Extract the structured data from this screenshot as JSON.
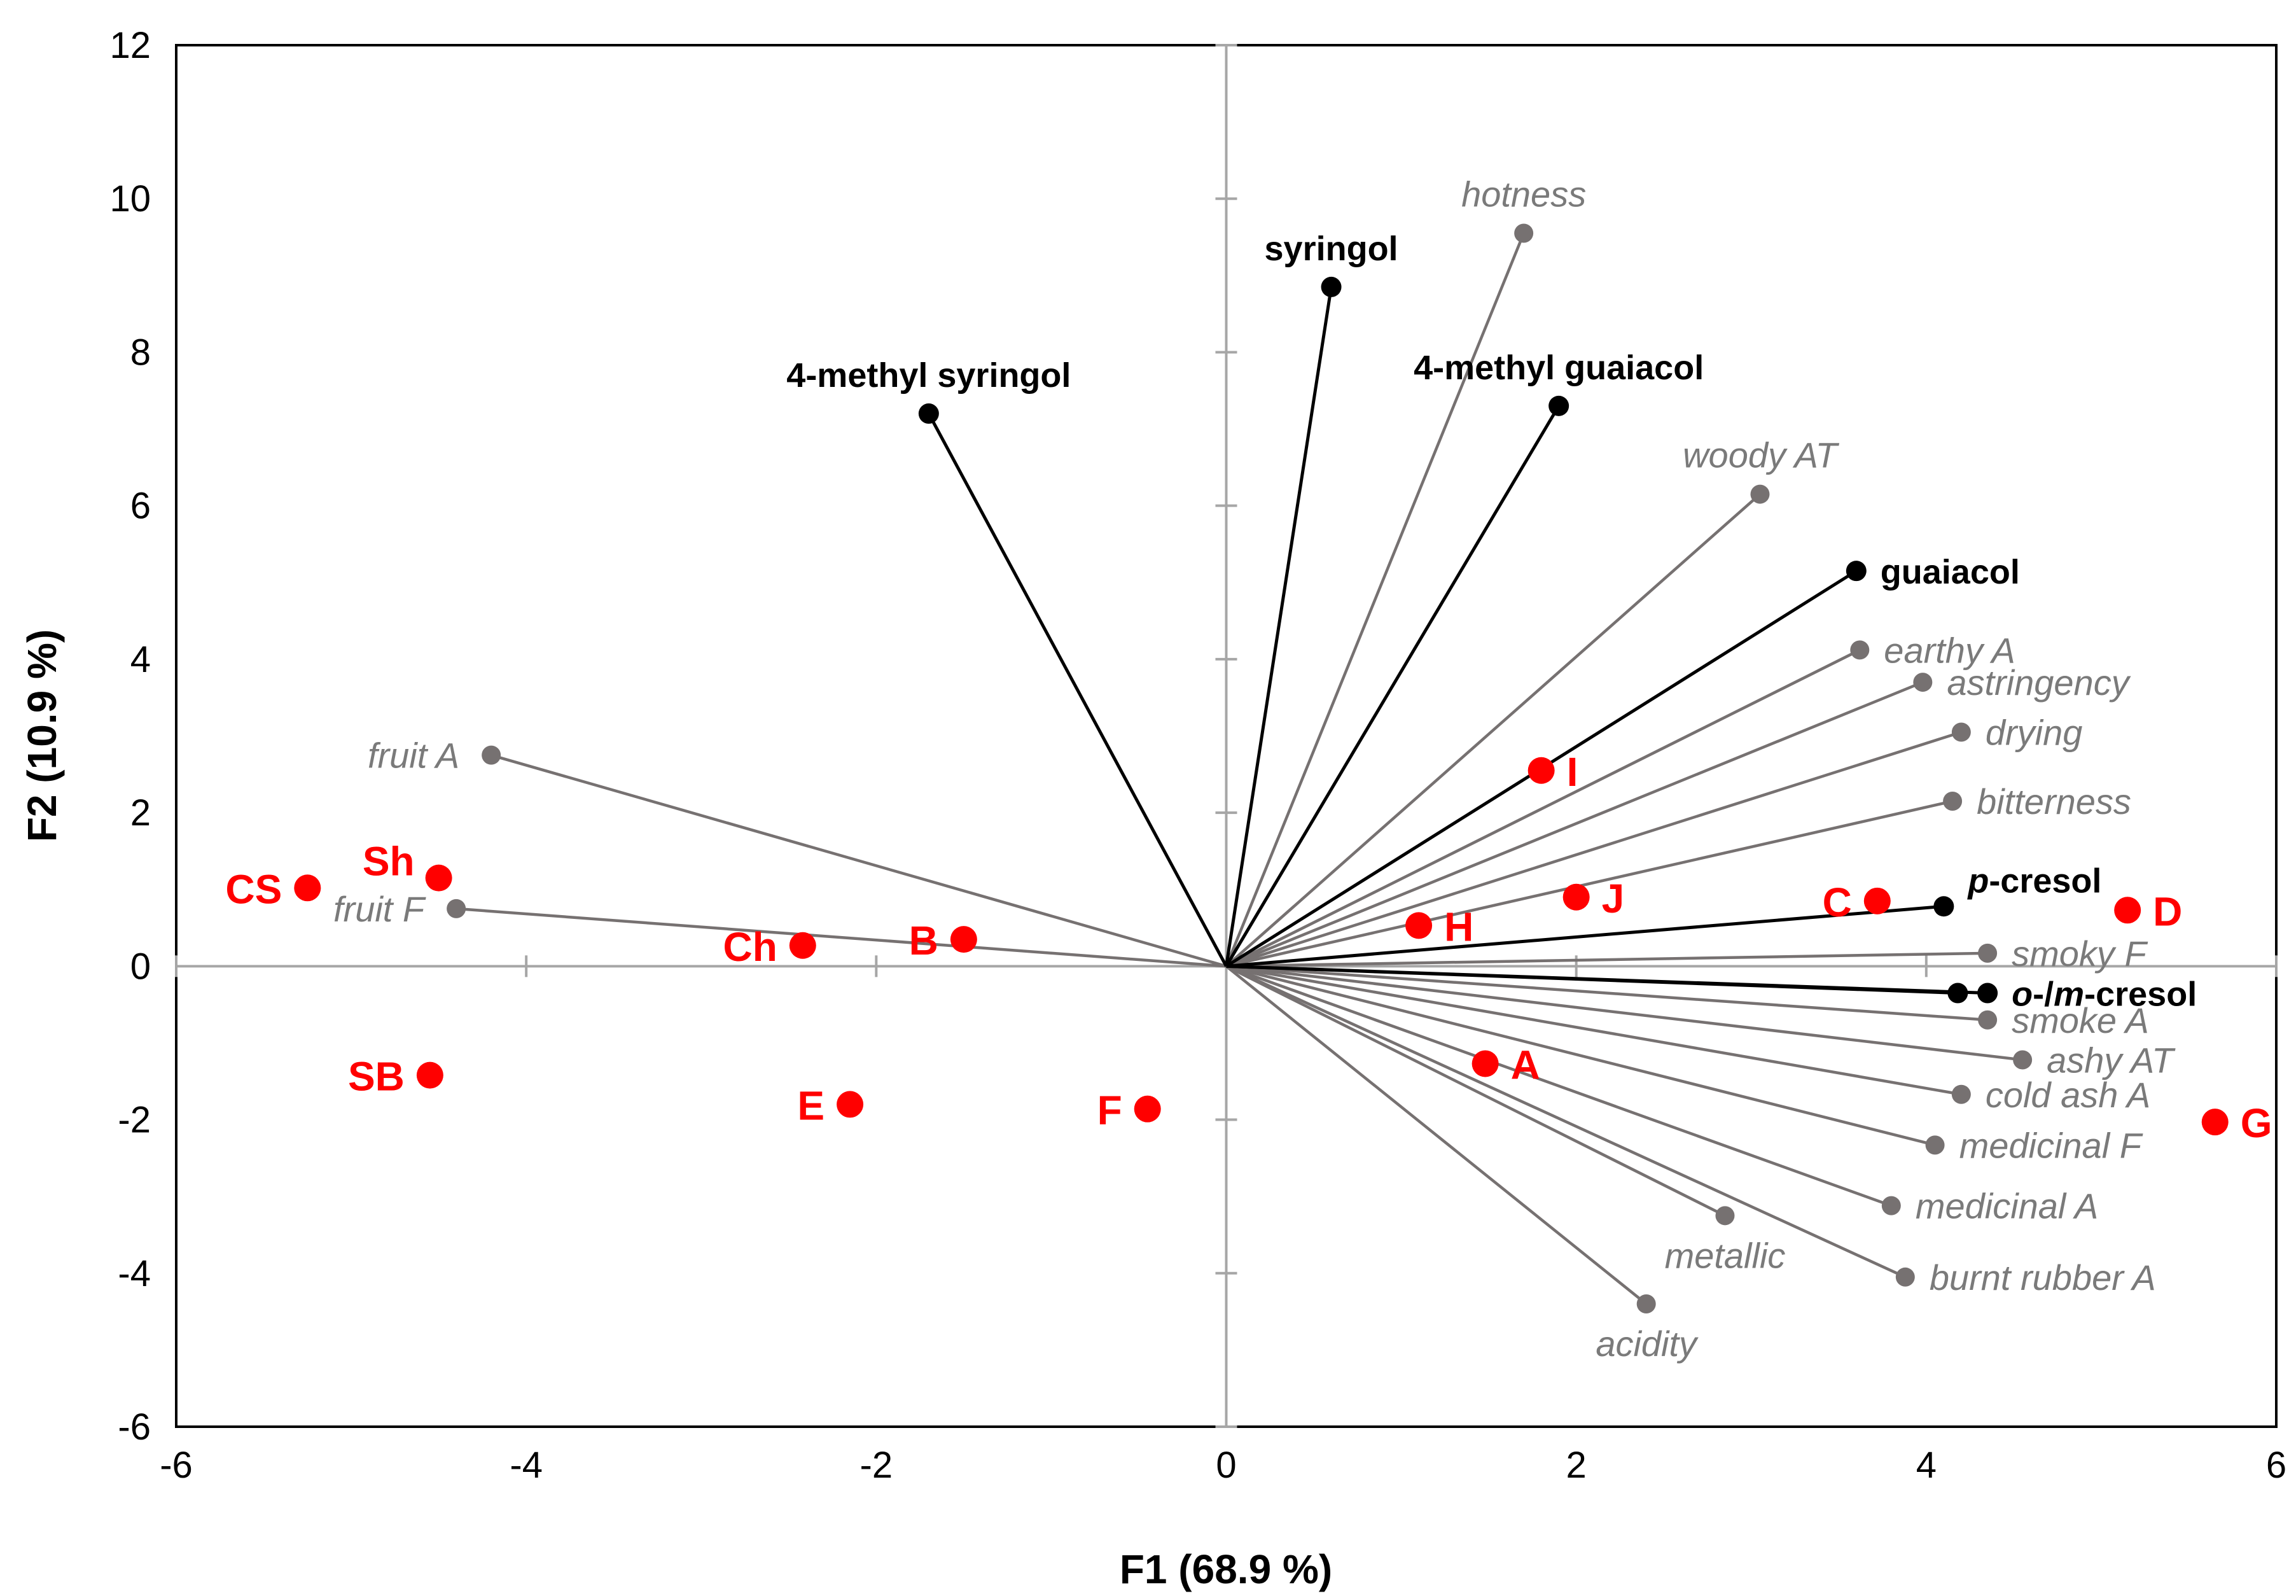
{
  "chart_data": {
    "type": "scatter",
    "subtype": "biplot",
    "title": "",
    "xlabel": "F1 (68.9 %)",
    "ylabel": "F2 (10.9 %)",
    "xlim": [
      -6,
      6
    ],
    "ylim": [
      -6,
      12
    ],
    "xticks": [
      -6,
      -4,
      -2,
      0,
      2,
      4,
      6
    ],
    "yticks": [
      -6,
      -4,
      -2,
      0,
      2,
      4,
      6,
      8,
      10,
      12
    ],
    "colors": {
      "variable_gray": "#767171",
      "variable_black": "#000000",
      "sample_red": "#ff0000",
      "axis": "#a6a6a6"
    },
    "gray_vectors": [
      {
        "name": "hotness",
        "x": 1.7,
        "y": 9.55,
        "anchor": "middle",
        "side": "above"
      },
      {
        "name": "woody AT",
        "x": 3.05,
        "y": 6.15,
        "anchor": "middle",
        "side": "above"
      },
      {
        "name": "earthy A",
        "x": 3.62,
        "y": 4.12,
        "anchor": "start",
        "side": "right"
      },
      {
        "name": "astringency",
        "x": 3.98,
        "y": 3.7,
        "anchor": "start",
        "side": "right"
      },
      {
        "name": "drying",
        "x": 4.2,
        "y": 3.05,
        "anchor": "start",
        "side": "right"
      },
      {
        "name": "bitterness",
        "x": 4.15,
        "y": 2.15,
        "anchor": "start",
        "side": "right"
      },
      {
        "name": "smoky F",
        "x": 4.35,
        "y": 0.17,
        "anchor": "start",
        "side": "right"
      },
      {
        "name": "smoke A",
        "x": 4.35,
        "y": -0.7,
        "anchor": "start",
        "side": "right"
      },
      {
        "name": "ashy AT",
        "x": 4.55,
        "y": -1.22,
        "anchor": "start",
        "side": "right"
      },
      {
        "name": "cold ash A",
        "x": 4.2,
        "y": -1.67,
        "anchor": "start",
        "side": "right"
      },
      {
        "name": "medicinal F",
        "x": 4.05,
        "y": -2.33,
        "anchor": "start",
        "side": "right"
      },
      {
        "name": "medicinal A",
        "x": 3.8,
        "y": -3.12,
        "anchor": "start",
        "side": "right"
      },
      {
        "name": "burnt rubber A",
        "x": 3.88,
        "y": -4.05,
        "anchor": "start",
        "side": "right"
      },
      {
        "name": "metallic",
        "x": 2.85,
        "y": -3.25,
        "anchor": "middle",
        "side": "below"
      },
      {
        "name": "acidity",
        "x": 2.4,
        "y": -4.4,
        "anchor": "middle",
        "side": "below"
      },
      {
        "name": "fruit A",
        "x": -4.2,
        "y": 2.75,
        "anchor": "end",
        "side": "left"
      },
      {
        "name": "fruit F",
        "x": -4.4,
        "y": 0.75,
        "anchor": "end",
        "side": "left"
      }
    ],
    "black_vectors": [
      {
        "name": "syringol",
        "x": 0.6,
        "y": 8.85,
        "anchor": "middle",
        "side": "above",
        "parts": [
          {
            "t": "syringol",
            "italic": false
          }
        ]
      },
      {
        "name": "4-methyl syringol",
        "x": -1.7,
        "y": 7.2,
        "anchor": "middle",
        "side": "above",
        "parts": [
          {
            "t": "4-methyl syringol",
            "italic": false
          }
        ]
      },
      {
        "name": "4-methyl guaiacol",
        "x": 1.9,
        "y": 7.3,
        "anchor": "middle",
        "side": "above",
        "parts": [
          {
            "t": "4-methyl guaiacol",
            "italic": false
          }
        ]
      },
      {
        "name": "guaiacol",
        "x": 3.6,
        "y": 5.15,
        "anchor": "start",
        "side": "right",
        "parts": [
          {
            "t": "guaiacol",
            "italic": false
          }
        ]
      },
      {
        "name": "p-cresol",
        "x": 4.1,
        "y": 0.78,
        "anchor": "start",
        "side": "right-up",
        "parts": [
          {
            "t": "p",
            "italic": true
          },
          {
            "t": "-cresol",
            "italic": false
          }
        ]
      },
      {
        "name": "o-cresol",
        "x": 4.18,
        "y": -0.35,
        "anchor": "none",
        "side": "none",
        "parts": []
      },
      {
        "name": "o-/m-cresol",
        "x": 4.35,
        "y": -0.35,
        "anchor": "start",
        "side": "right",
        "parts": [
          {
            "t": "o",
            "italic": true
          },
          {
            "t": "-/",
            "italic": false
          },
          {
            "t": "m",
            "italic": true
          },
          {
            "t": "-cresol",
            "italic": false
          }
        ]
      }
    ],
    "samples": [
      {
        "name": "CS",
        "x": -5.25,
        "y": 1.02,
        "side": "left"
      },
      {
        "name": "Sh",
        "x": -4.5,
        "y": 1.15,
        "side": "upper-left"
      },
      {
        "name": "Ch",
        "x": -2.42,
        "y": 0.27,
        "side": "left"
      },
      {
        "name": "B",
        "x": -1.5,
        "y": 0.35,
        "side": "left"
      },
      {
        "name": "SB",
        "x": -4.55,
        "y": -1.42,
        "side": "left"
      },
      {
        "name": "E",
        "x": -2.15,
        "y": -1.8,
        "side": "left"
      },
      {
        "name": "F",
        "x": -0.45,
        "y": -1.86,
        "side": "left"
      },
      {
        "name": "I",
        "x": 1.8,
        "y": 2.55,
        "side": "right"
      },
      {
        "name": "J",
        "x": 2.0,
        "y": 0.9,
        "side": "right"
      },
      {
        "name": "H",
        "x": 1.1,
        "y": 0.53,
        "side": "right"
      },
      {
        "name": "C",
        "x": 3.72,
        "y": 0.85,
        "side": "left"
      },
      {
        "name": "D",
        "x": 5.15,
        "y": 0.73,
        "side": "right"
      },
      {
        "name": "A",
        "x": 1.48,
        "y": -1.27,
        "side": "right"
      },
      {
        "name": "G",
        "x": 5.65,
        "y": -2.03,
        "side": "right"
      }
    ]
  }
}
